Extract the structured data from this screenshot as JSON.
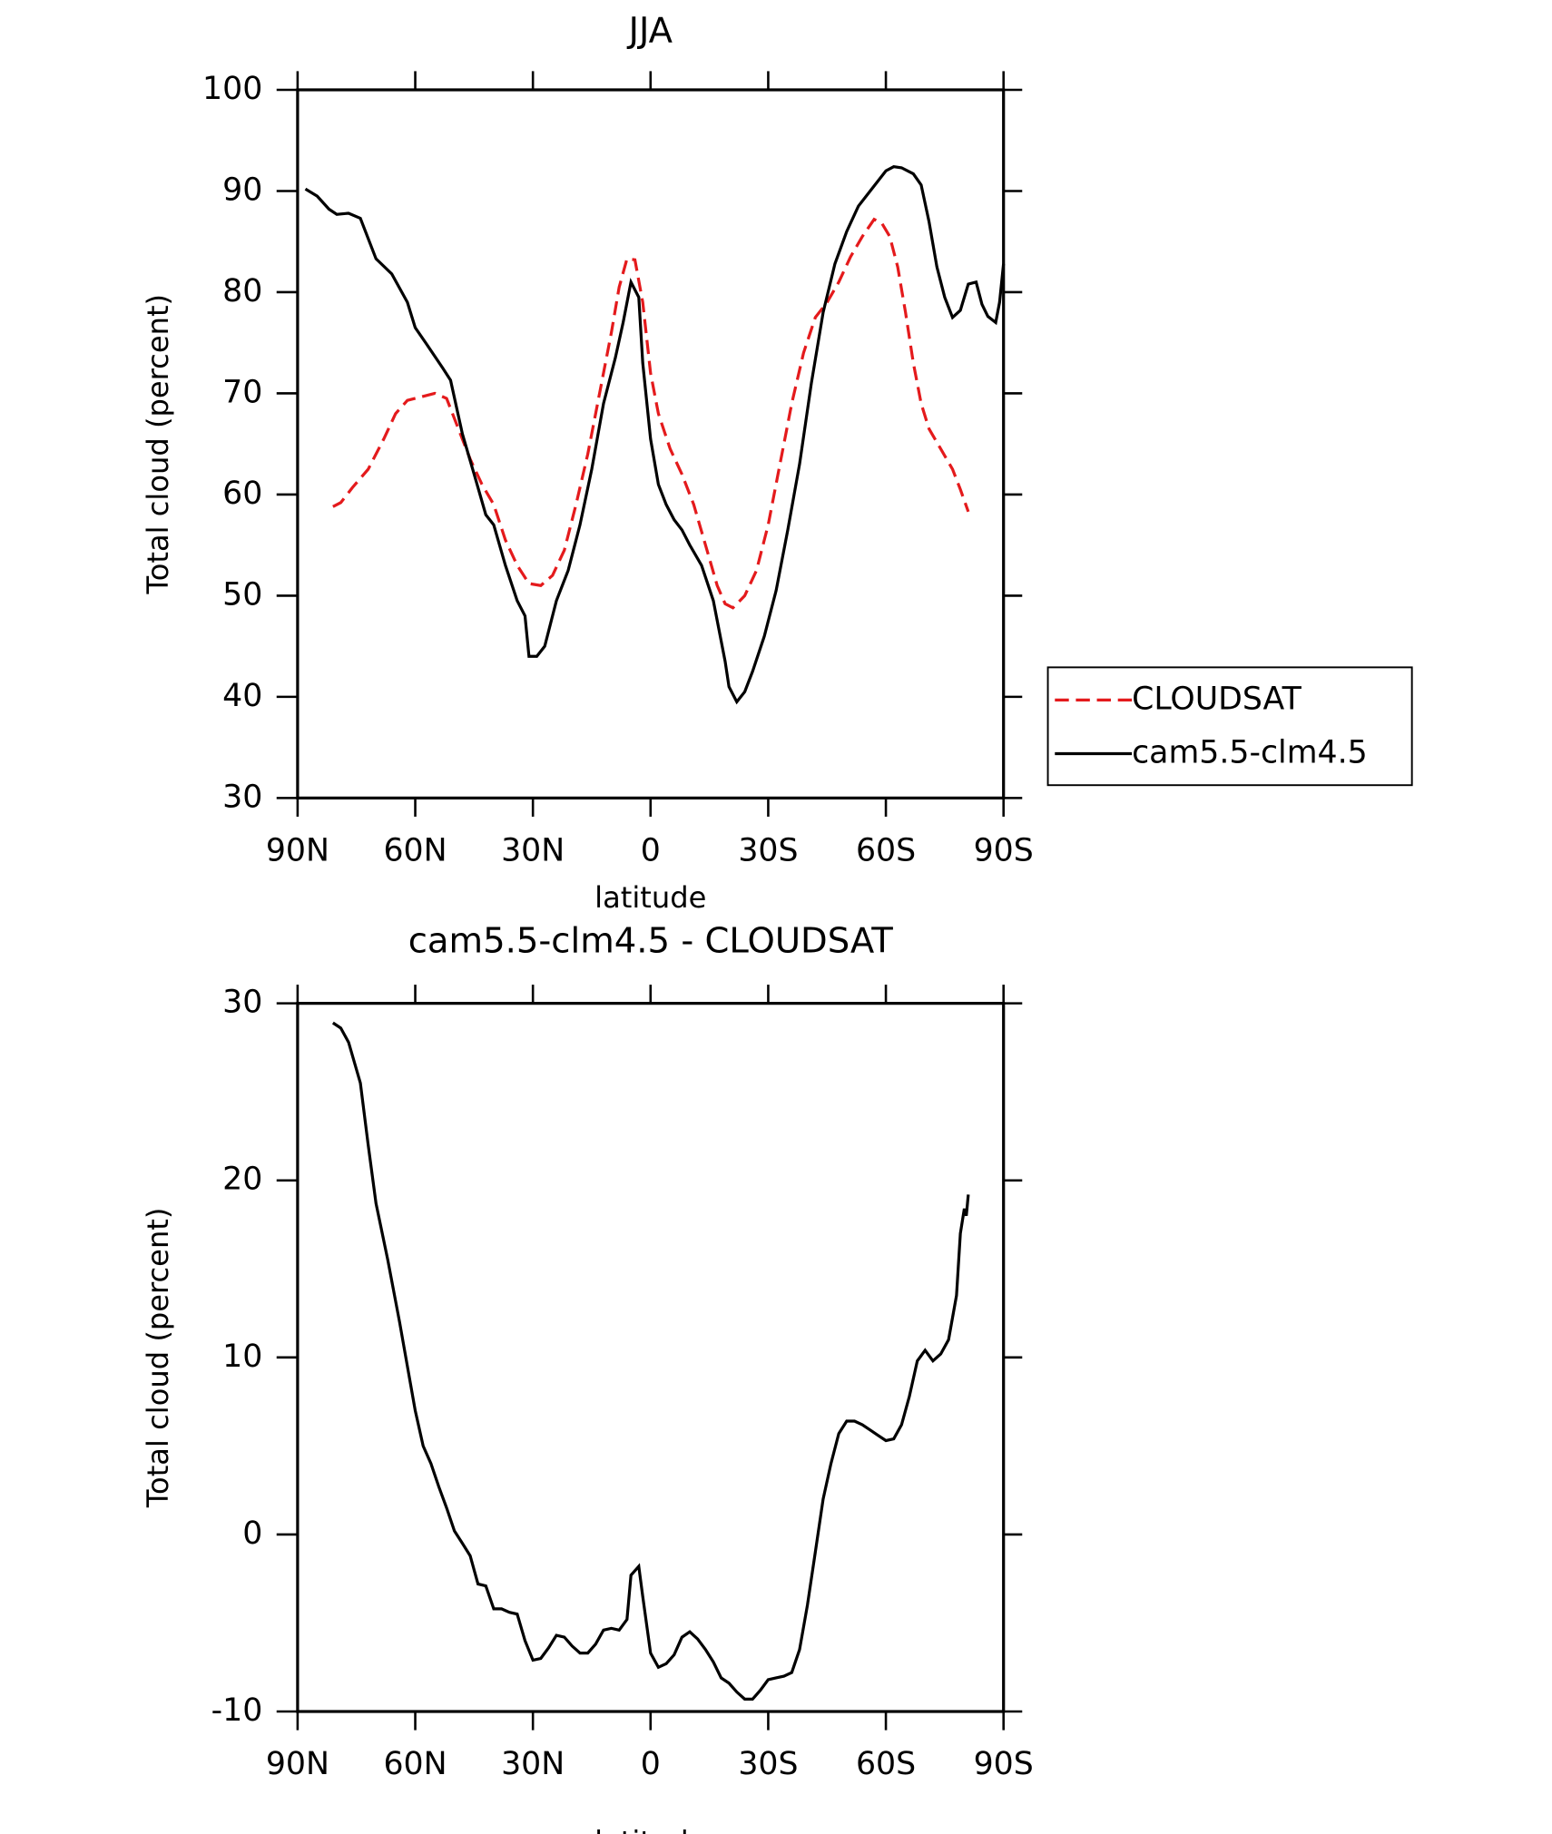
{
  "chart_data": [
    {
      "type": "line",
      "title": "JJA",
      "xlabel": "latitude",
      "ylabel": "Total cloud (percent)",
      "xlim": [
        90,
        -90
      ],
      "ylim": [
        30,
        100
      ],
      "xticks": [
        {
          "value": 90,
          "label": "90N"
        },
        {
          "value": 60,
          "label": "60N"
        },
        {
          "value": 30,
          "label": "30N"
        },
        0,
        {
          "value": -30,
          "label": "30S"
        },
        {
          "value": -60,
          "label": "60S"
        },
        {
          "value": -90,
          "label": "90S"
        }
      ],
      "yticks": [
        30,
        40,
        50,
        60,
        70,
        80,
        90,
        100
      ],
      "legend": "outside-right",
      "series": [
        {
          "name": "CLOUDSAT",
          "color": "#e41a1c",
          "dash": true,
          "x": [
            81,
            79,
            76,
            72,
            68,
            65,
            62,
            59,
            55,
            52,
            49,
            46,
            43,
            40,
            37,
            34,
            31,
            28,
            25,
            22,
            19,
            16,
            13,
            10,
            8,
            6,
            4,
            2,
            0,
            -2,
            -5,
            -8,
            -11,
            -14,
            -17,
            -19,
            -21,
            -24,
            -27,
            -30,
            -33,
            -36,
            -39,
            -42,
            -45,
            -48,
            -51,
            -54,
            -57,
            -59,
            -61,
            -63,
            -65,
            -67,
            -69,
            -71,
            -74,
            -77,
            -79,
            -81
          ],
          "values": [
            58.8,
            59.2,
            60.7,
            62.5,
            65.5,
            68,
            69.3,
            69.6,
            70,
            69.5,
            66.5,
            63.5,
            61,
            59,
            55.5,
            53,
            51.2,
            51,
            52,
            54.5,
            59,
            64,
            70,
            76,
            80.5,
            83.3,
            83.2,
            79,
            72,
            68,
            64.5,
            62,
            59,
            55,
            51,
            49.2,
            48.8,
            50,
            52.5,
            57,
            63,
            69,
            74,
            77.5,
            79,
            81,
            83.5,
            85.5,
            87.2,
            86.8,
            85.5,
            82.5,
            78,
            73,
            69,
            66.5,
            64.5,
            62.5,
            60.5,
            58.3
          ]
        },
        {
          "name": "cam5.5-clm4.5",
          "color": "#000000",
          "dash": false,
          "x": [
            88,
            85,
            82,
            80,
            77,
            74,
            70,
            66,
            62,
            60,
            57,
            53,
            51,
            48,
            45,
            42,
            40,
            37,
            34,
            32,
            31,
            29,
            27,
            24,
            21,
            18,
            15,
            12,
            9,
            7,
            5,
            3,
            2,
            0,
            -2,
            -4,
            -6,
            -8,
            -10,
            -13,
            -16,
            -19,
            -20,
            -22,
            -24,
            -26,
            -29,
            -32,
            -35,
            -38,
            -41,
            -44,
            -47,
            -50,
            -53,
            -56,
            -60,
            -62,
            -64,
            -67,
            -69,
            -71,
            -73,
            -75,
            -77,
            -79,
            -81,
            -83,
            -84.5,
            -86,
            -88,
            -89,
            -90
          ],
          "values": [
            90.2,
            89.5,
            88.2,
            87.7,
            87.8,
            87.3,
            83.3,
            81.8,
            79,
            76.5,
            74.8,
            72.5,
            71.3,
            66,
            62,
            58,
            57,
            53,
            49.5,
            48,
            44,
            44,
            45,
            49.5,
            52.5,
            57,
            62.5,
            69,
            73.5,
            77,
            81,
            79.5,
            73,
            65.5,
            61,
            59,
            57.5,
            56.5,
            55,
            53,
            49.5,
            43.5,
            41,
            39.5,
            40.5,
            42.5,
            46,
            50.5,
            56.5,
            63,
            71,
            78,
            82.8,
            86,
            88.5,
            90,
            92,
            92.4,
            92.3,
            91.7,
            90.6,
            87,
            82.5,
            79.5,
            77.5,
            78.2,
            80.8,
            81,
            78.8,
            77.6,
            77,
            79,
            82.8
          ]
        }
      ]
    },
    {
      "type": "line",
      "title": "cam5.5-clm4.5 - CLOUDSAT",
      "xlabel": "latitude",
      "ylabel": "Total cloud (percent)",
      "xlim": [
        90,
        -90
      ],
      "ylim": [
        -10,
        30
      ],
      "xticks": [
        {
          "value": 90,
          "label": "90N"
        },
        {
          "value": 60,
          "label": "60N"
        },
        {
          "value": 30,
          "label": "30N"
        },
        0,
        {
          "value": -30,
          "label": "30S"
        },
        {
          "value": -60,
          "label": "60S"
        },
        {
          "value": -90,
          "label": "90S"
        }
      ],
      "yticks": [
        -10,
        0,
        10,
        20,
        30
      ],
      "series": [
        {
          "color": "#000000",
          "dash": false,
          "x": [
            81,
            79,
            77,
            74,
            72,
            70,
            67,
            64,
            62,
            60,
            58,
            56,
            54,
            52,
            50,
            48,
            46,
            44,
            42,
            40,
            38,
            36,
            34,
            32,
            30,
            28,
            26,
            24,
            22,
            20,
            18,
            16,
            14,
            12,
            10,
            8,
            6,
            5,
            3,
            2,
            0,
            -2,
            -4,
            -6,
            -8,
            -10,
            -12,
            -14,
            -16,
            -18,
            -20,
            -22,
            -24,
            -26,
            -28,
            -30,
            -32,
            -34,
            -36,
            -38,
            -40,
            -42,
            -44,
            -46,
            -48,
            -50,
            -52,
            -54,
            -56,
            -58,
            -60,
            -62,
            -64,
            -66,
            -68,
            -70,
            -72,
            -74,
            -76,
            -78,
            -79,
            -80,
            -80.5,
            -81
          ],
          "values": [
            28.9,
            28.6,
            27.8,
            25.5,
            22,
            18.7,
            15.5,
            12,
            9.5,
            7,
            5,
            4,
            2.7,
            1.5,
            0.2,
            -0.5,
            -1.2,
            -2.8,
            -2.9,
            -4.2,
            -4.2,
            -4.4,
            -4.5,
            -6,
            -7.1,
            -7,
            -6.4,
            -5.7,
            -5.8,
            -6.3,
            -6.7,
            -6.7,
            -6.2,
            -5.4,
            -5.3,
            -5.4,
            -4.8,
            -2.3,
            -1.8,
            -3.5,
            -6.7,
            -7.5,
            -7.3,
            -6.8,
            -5.8,
            -5.5,
            -5.9,
            -6.5,
            -7.2,
            -8.1,
            -8.4,
            -8.9,
            -9.3,
            -9.3,
            -8.8,
            -8.2,
            -8.1,
            -8,
            -7.8,
            -6.5,
            -4,
            -1,
            2,
            4,
            5.7,
            6.4,
            6.4,
            6.2,
            5.9,
            5.6,
            5.3,
            5.4,
            6.2,
            7.8,
            9.8,
            10.4,
            9.8,
            10.2,
            11,
            13.5,
            17,
            18.4,
            18,
            19.2
          ]
        }
      ]
    }
  ]
}
